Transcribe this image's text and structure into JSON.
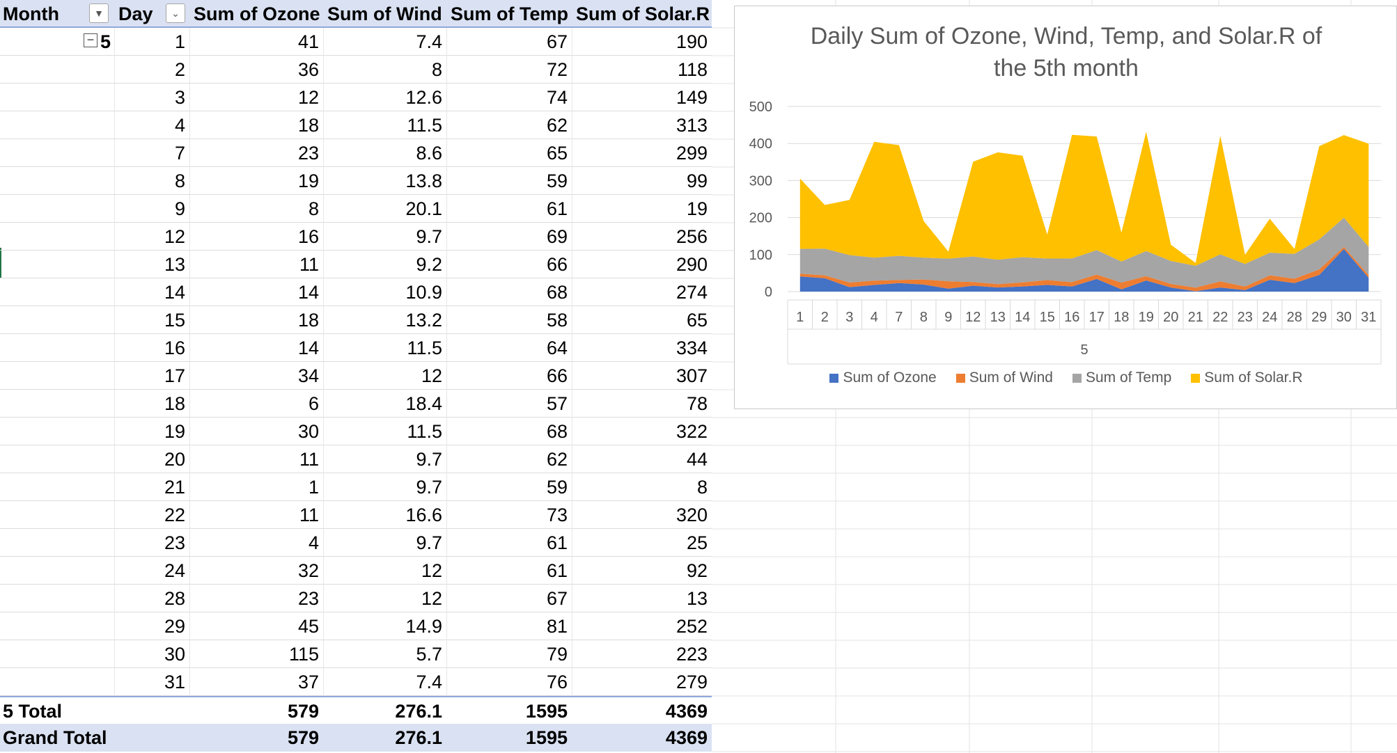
{
  "pivot": {
    "headers": {
      "month": "Month",
      "day": "Day",
      "ozone": "Sum of Ozone",
      "wind": "Sum of Wind",
      "temp": "Sum of Temp",
      "solar": "Sum of Solar.R"
    },
    "month_value": "5",
    "rows": [
      {
        "day": "1",
        "ozone": "41",
        "wind": "7.4",
        "temp": "67",
        "solar": "190"
      },
      {
        "day": "2",
        "ozone": "36",
        "wind": "8",
        "temp": "72",
        "solar": "118"
      },
      {
        "day": "3",
        "ozone": "12",
        "wind": "12.6",
        "temp": "74",
        "solar": "149"
      },
      {
        "day": "4",
        "ozone": "18",
        "wind": "11.5",
        "temp": "62",
        "solar": "313"
      },
      {
        "day": "7",
        "ozone": "23",
        "wind": "8.6",
        "temp": "65",
        "solar": "299"
      },
      {
        "day": "8",
        "ozone": "19",
        "wind": "13.8",
        "temp": "59",
        "solar": "99"
      },
      {
        "day": "9",
        "ozone": "8",
        "wind": "20.1",
        "temp": "61",
        "solar": "19"
      },
      {
        "day": "12",
        "ozone": "16",
        "wind": "9.7",
        "temp": "69",
        "solar": "256"
      },
      {
        "day": "13",
        "ozone": "11",
        "wind": "9.2",
        "temp": "66",
        "solar": "290"
      },
      {
        "day": "14",
        "ozone": "14",
        "wind": "10.9",
        "temp": "68",
        "solar": "274"
      },
      {
        "day": "15",
        "ozone": "18",
        "wind": "13.2",
        "temp": "58",
        "solar": "65"
      },
      {
        "day": "16",
        "ozone": "14",
        "wind": "11.5",
        "temp": "64",
        "solar": "334"
      },
      {
        "day": "17",
        "ozone": "34",
        "wind": "12",
        "temp": "66",
        "solar": "307"
      },
      {
        "day": "18",
        "ozone": "6",
        "wind": "18.4",
        "temp": "57",
        "solar": "78"
      },
      {
        "day": "19",
        "ozone": "30",
        "wind": "11.5",
        "temp": "68",
        "solar": "322"
      },
      {
        "day": "20",
        "ozone": "11",
        "wind": "9.7",
        "temp": "62",
        "solar": "44"
      },
      {
        "day": "21",
        "ozone": "1",
        "wind": "9.7",
        "temp": "59",
        "solar": "8"
      },
      {
        "day": "22",
        "ozone": "11",
        "wind": "16.6",
        "temp": "73",
        "solar": "320"
      },
      {
        "day": "23",
        "ozone": "4",
        "wind": "9.7",
        "temp": "61",
        "solar": "25"
      },
      {
        "day": "24",
        "ozone": "32",
        "wind": "12",
        "temp": "61",
        "solar": "92"
      },
      {
        "day": "28",
        "ozone": "23",
        "wind": "12",
        "temp": "67",
        "solar": "13"
      },
      {
        "day": "29",
        "ozone": "45",
        "wind": "14.9",
        "temp": "81",
        "solar": "252"
      },
      {
        "day": "30",
        "ozone": "115",
        "wind": "5.7",
        "temp": "79",
        "solar": "223"
      },
      {
        "day": "31",
        "ozone": "37",
        "wind": "7.4",
        "temp": "76",
        "solar": "279"
      }
    ],
    "subtotal": {
      "label": "5 Total",
      "ozone": "579",
      "wind": "276.1",
      "temp": "1595",
      "solar": "4369"
    },
    "grand_total": {
      "label": "Grand Total",
      "ozone": "579",
      "wind": "276.1",
      "temp": "1595",
      "solar": "4369"
    }
  },
  "chart_data": {
    "type": "area",
    "stacked": true,
    "title_line1": "Daily Sum of Ozone, Wind, Temp, and Solar.R of",
    "title_line2": "the 5th month",
    "categories": [
      "1",
      "2",
      "3",
      "4",
      "7",
      "8",
      "9",
      "12",
      "13",
      "14",
      "15",
      "16",
      "17",
      "18",
      "19",
      "20",
      "21",
      "22",
      "23",
      "24",
      "28",
      "29",
      "30",
      "31"
    ],
    "group_label": "5",
    "ylim": [
      0,
      500
    ],
    "yticks": [
      "0",
      "100",
      "200",
      "300",
      "400",
      "500"
    ],
    "grid": true,
    "legend_position": "bottom",
    "series": [
      {
        "name": "Sum of Ozone",
        "color": "#4472c4",
        "values": [
          41,
          36,
          12,
          18,
          23,
          19,
          8,
          16,
          11,
          14,
          18,
          14,
          34,
          6,
          30,
          11,
          1,
          11,
          4,
          32,
          23,
          45,
          115,
          37
        ]
      },
      {
        "name": "Sum of Wind",
        "color": "#ed7d31",
        "values": [
          7.4,
          8,
          12.6,
          11.5,
          8.6,
          13.8,
          20.1,
          9.7,
          9.2,
          10.9,
          13.2,
          11.5,
          12,
          18.4,
          11.5,
          9.7,
          9.7,
          16.6,
          9.7,
          12,
          12,
          14.9,
          5.7,
          7.4
        ]
      },
      {
        "name": "Sum of Temp",
        "color": "#a5a5a5",
        "values": [
          67,
          72,
          74,
          62,
          65,
          59,
          61,
          69,
          66,
          68,
          58,
          64,
          66,
          57,
          68,
          62,
          59,
          73,
          61,
          61,
          67,
          81,
          79,
          76
        ]
      },
      {
        "name": "Sum of Solar.R",
        "color": "#ffc000",
        "values": [
          190,
          118,
          149,
          313,
          299,
          99,
          19,
          256,
          290,
          274,
          65,
          334,
          307,
          78,
          322,
          44,
          8,
          320,
          25,
          92,
          13,
          252,
          223,
          279
        ]
      }
    ]
  }
}
